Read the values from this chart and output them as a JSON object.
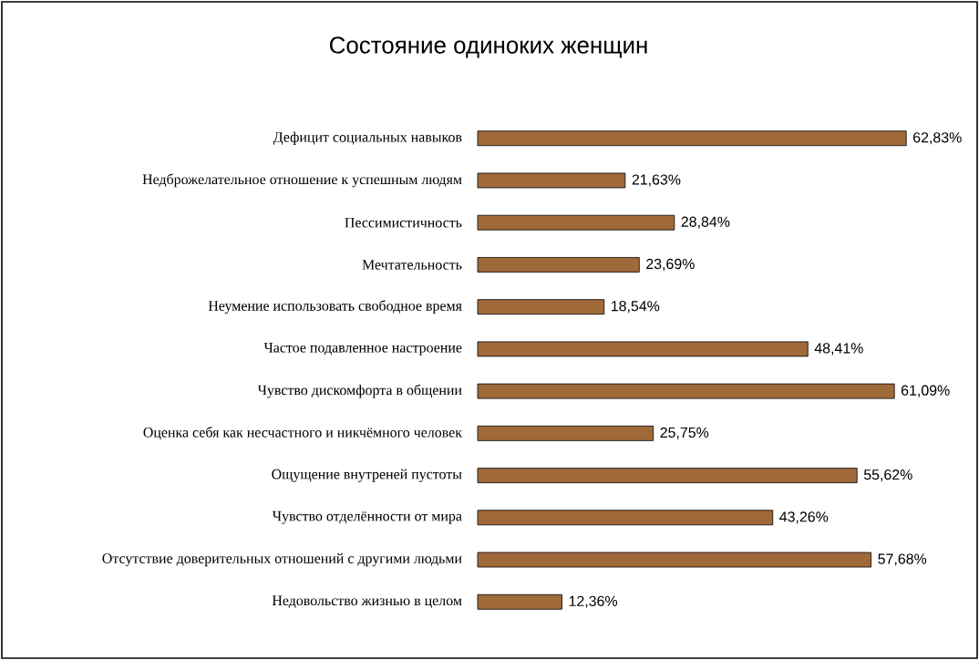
{
  "chart_data": {
    "type": "bar",
    "orientation": "horizontal",
    "title": "Состояние одиноких женщин",
    "categories": [
      "Дефицит социальных навыков",
      "Недброжелательное отношение к успешным людям",
      "Пессимистичность",
      "Мечтательность",
      "Неумение использовать свободное время",
      "Частое подавленное настроение",
      "Чувство дискомфорта в общении",
      "Оценка себя как несчастного и никчёмного человек",
      "Ощущение внутреней пустоты",
      "Чувство отделённости от мира",
      "Отсутствие доверительных отношений с другими людьми",
      "Недовольство жизнью в целом"
    ],
    "values": [
      62.83,
      21.63,
      28.84,
      23.69,
      18.54,
      48.41,
      61.09,
      25.75,
      55.62,
      43.26,
      57.68,
      12.36
    ],
    "value_labels": [
      "62,83%",
      "21,63%",
      "28,84%",
      "23,69%",
      "18,54%",
      "48,41%",
      "61,09%",
      "25,75%",
      "55,62%",
      "43,26%",
      "57,68%",
      "12,36%"
    ],
    "color": "#a0693a"
  }
}
